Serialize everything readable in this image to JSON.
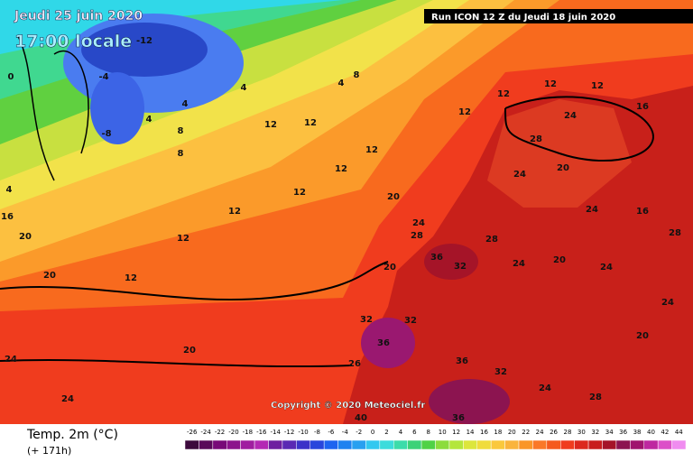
{
  "header": {
    "date": "Jeudi 25 juin 2020",
    "time": "17:00 locale",
    "run": "Run ICON 12 Z du Jeudi 18 juin 2020"
  },
  "copyright": "Copyright © 2020 Meteociel.fr",
  "legend": {
    "title": "Temp. 2m (°C)",
    "lead": "(+ 171h)",
    "labels": [
      -26,
      -24,
      -22,
      -20,
      -18,
      -16,
      -14,
      -12,
      -10,
      -8,
      -6,
      -4,
      -2,
      0,
      2,
      4,
      6,
      8,
      10,
      12,
      14,
      16,
      18,
      20,
      22,
      24,
      26,
      28,
      30,
      32,
      34,
      36,
      38,
      40,
      42,
      44
    ],
    "colors": [
      "#3c0a3c",
      "#5a0a5a",
      "#780a78",
      "#8c148c",
      "#a01ea0",
      "#b428b4",
      "#6e1ea0",
      "#5a28b4",
      "#3c32c8",
      "#2846dc",
      "#1e64f0",
      "#1e82f0",
      "#28a0f0",
      "#32c8f0",
      "#3cdcdc",
      "#3cdcaa",
      "#3cd278",
      "#50d246",
      "#8cdc3c",
      "#b4e63c",
      "#dce63c",
      "#f0dc3c",
      "#fac83c",
      "#fab43c",
      "#fa9628",
      "#fa7828",
      "#f55a1e",
      "#f03c1e",
      "#dc281e",
      "#c81e1e",
      "#a51428",
      "#8c1450",
      "#a0146e",
      "#be28a0",
      "#dc50c8",
      "#f08cf0"
    ]
  },
  "map_labels": [
    "-12",
    "-4",
    "-8",
    "4",
    "4",
    "4",
    "4",
    "8",
    "8",
    "8",
    "0",
    "4",
    "16",
    "20",
    "20",
    "12",
    "12",
    "12",
    "12",
    "12",
    "12",
    "12",
    "12",
    "12",
    "12",
    "16",
    "24",
    "28",
    "24",
    "20",
    "24",
    "16",
    "28",
    "20",
    "24",
    "28",
    "36",
    "32",
    "28",
    "24",
    "20",
    "24",
    "20",
    "32",
    "36",
    "32",
    "36",
    "32",
    "24",
    "28",
    "20",
    "20",
    "24",
    "24",
    "26",
    "40",
    "36",
    "24",
    "12",
    "12"
  ]
}
